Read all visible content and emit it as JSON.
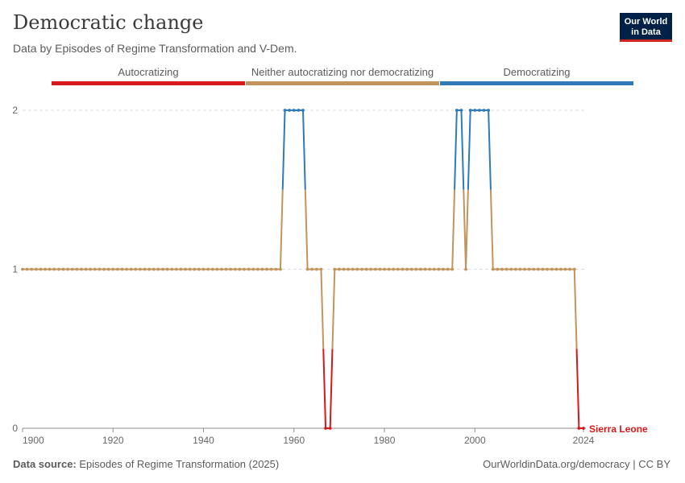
{
  "header": {
    "title": "Democratic change",
    "subtitle": "Data by Episodes of Regime Transformation and V-Dem."
  },
  "logo": {
    "line1": "Our World",
    "line2": "in Data"
  },
  "legend": [
    {
      "label": "Autocratizing",
      "color": "#d7191c"
    },
    {
      "label": "Neither autocratizing nor democratizing",
      "color": "#c3935c"
    },
    {
      "label": "Democratizing",
      "color": "#2f7ab8"
    }
  ],
  "footer": {
    "source_label": "Data source:",
    "source_text": "Episodes of Regime Transformation (2025)",
    "url": "OurWorldinData.org/democracy | CC BY"
  },
  "chart_data": {
    "type": "line",
    "title": "Democratic change",
    "series_name": "Sierra Leone",
    "x_range": [
      1900,
      2024
    ],
    "ylim": [
      0,
      2
    ],
    "x_ticks": [
      "1900",
      "1920",
      "1940",
      "1960",
      "1980",
      "2000",
      "2024"
    ],
    "y_ticks": [
      "0",
      "1",
      "2"
    ],
    "category_colors": {
      "0": "#d7191c",
      "1": "#c3935c",
      "2": "#2f7ab8"
    },
    "label_color": "#d7191c",
    "points": [
      [
        1900,
        1
      ],
      [
        1901,
        1
      ],
      [
        1902,
        1
      ],
      [
        1903,
        1
      ],
      [
        1904,
        1
      ],
      [
        1905,
        1
      ],
      [
        1906,
        1
      ],
      [
        1907,
        1
      ],
      [
        1908,
        1
      ],
      [
        1909,
        1
      ],
      [
        1910,
        1
      ],
      [
        1911,
        1
      ],
      [
        1912,
        1
      ],
      [
        1913,
        1
      ],
      [
        1914,
        1
      ],
      [
        1915,
        1
      ],
      [
        1916,
        1
      ],
      [
        1917,
        1
      ],
      [
        1918,
        1
      ],
      [
        1919,
        1
      ],
      [
        1920,
        1
      ],
      [
        1921,
        1
      ],
      [
        1922,
        1
      ],
      [
        1923,
        1
      ],
      [
        1924,
        1
      ],
      [
        1925,
        1
      ],
      [
        1926,
        1
      ],
      [
        1927,
        1
      ],
      [
        1928,
        1
      ],
      [
        1929,
        1
      ],
      [
        1930,
        1
      ],
      [
        1931,
        1
      ],
      [
        1932,
        1
      ],
      [
        1933,
        1
      ],
      [
        1934,
        1
      ],
      [
        1935,
        1
      ],
      [
        1936,
        1
      ],
      [
        1937,
        1
      ],
      [
        1938,
        1
      ],
      [
        1939,
        1
      ],
      [
        1940,
        1
      ],
      [
        1941,
        1
      ],
      [
        1942,
        1
      ],
      [
        1943,
        1
      ],
      [
        1944,
        1
      ],
      [
        1945,
        1
      ],
      [
        1946,
        1
      ],
      [
        1947,
        1
      ],
      [
        1948,
        1
      ],
      [
        1949,
        1
      ],
      [
        1950,
        1
      ],
      [
        1951,
        1
      ],
      [
        1952,
        1
      ],
      [
        1953,
        1
      ],
      [
        1954,
        1
      ],
      [
        1955,
        1
      ],
      [
        1956,
        1
      ],
      [
        1957,
        1
      ],
      [
        1958,
        2
      ],
      [
        1959,
        2
      ],
      [
        1960,
        2
      ],
      [
        1961,
        2
      ],
      [
        1962,
        2
      ],
      [
        1963,
        1
      ],
      [
        1964,
        1
      ],
      [
        1965,
        1
      ],
      [
        1966,
        1
      ],
      [
        1967,
        0
      ],
      [
        1968,
        0
      ],
      [
        1969,
        1
      ],
      [
        1970,
        1
      ],
      [
        1971,
        1
      ],
      [
        1972,
        1
      ],
      [
        1973,
        1
      ],
      [
        1974,
        1
      ],
      [
        1975,
        1
      ],
      [
        1976,
        1
      ],
      [
        1977,
        1
      ],
      [
        1978,
        1
      ],
      [
        1979,
        1
      ],
      [
        1980,
        1
      ],
      [
        1981,
        1
      ],
      [
        1982,
        1
      ],
      [
        1983,
        1
      ],
      [
        1984,
        1
      ],
      [
        1985,
        1
      ],
      [
        1986,
        1
      ],
      [
        1987,
        1
      ],
      [
        1988,
        1
      ],
      [
        1989,
        1
      ],
      [
        1990,
        1
      ],
      [
        1991,
        1
      ],
      [
        1992,
        1
      ],
      [
        1993,
        1
      ],
      [
        1994,
        1
      ],
      [
        1995,
        1
      ],
      [
        1996,
        2
      ],
      [
        1997,
        2
      ],
      [
        1998,
        1
      ],
      [
        1999,
        2
      ],
      [
        2000,
        2
      ],
      [
        2001,
        2
      ],
      [
        2002,
        2
      ],
      [
        2003,
        2
      ],
      [
        2004,
        1
      ],
      [
        2005,
        1
      ],
      [
        2006,
        1
      ],
      [
        2007,
        1
      ],
      [
        2008,
        1
      ],
      [
        2009,
        1
      ],
      [
        2010,
        1
      ],
      [
        2011,
        1
      ],
      [
        2012,
        1
      ],
      [
        2013,
        1
      ],
      [
        2014,
        1
      ],
      [
        2015,
        1
      ],
      [
        2016,
        1
      ],
      [
        2017,
        1
      ],
      [
        2018,
        1
      ],
      [
        2019,
        1
      ],
      [
        2020,
        1
      ],
      [
        2021,
        1
      ],
      [
        2022,
        1
      ],
      [
        2023,
        0
      ],
      [
        2024,
        0
      ]
    ]
  }
}
